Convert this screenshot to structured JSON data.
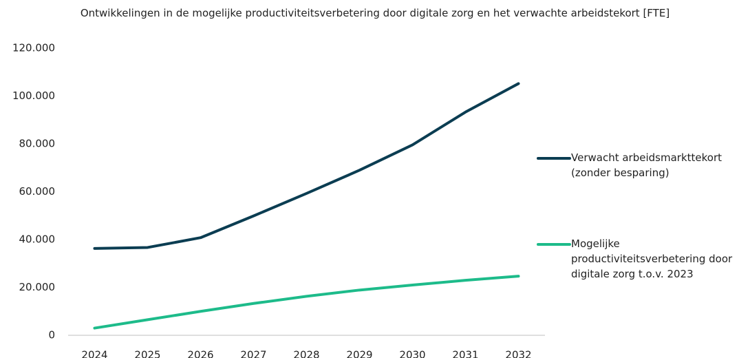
{
  "chart_data": {
    "type": "line",
    "title": "Ontwikkelingen in de mogelijke productiviteitsverbetering door digitale zorg en het verwachte arbeidstekort [FTE]",
    "categories": [
      "2024",
      "2025",
      "2026",
      "2027",
      "2028",
      "2029",
      "2030",
      "2031",
      "2032"
    ],
    "series": [
      {
        "name": "Verwacht arbeidsmarkttekort (zonder besparing)",
        "color": "#0b3d52",
        "values": [
          36300,
          36700,
          40800,
          49900,
          59300,
          69000,
          79600,
          93300,
          105200
        ]
      },
      {
        "name": "Mogelijke productiviteitsverbetering door digitale zorg t.o.v. 2023",
        "color": "#1dbb8a",
        "values": [
          3000,
          6500,
          10000,
          13300,
          16300,
          18900,
          21000,
          23000,
          24700
        ]
      }
    ],
    "ylim": [
      0,
      120000
    ],
    "yticks": [
      0,
      {
        "value": 20000,
        "label": "20.000"
      },
      {
        "value": 40000,
        "label": "40.000"
      },
      {
        "value": 60000,
        "label": "60.000"
      },
      {
        "value": 80000,
        "label": "80.000"
      },
      {
        "value": 100000,
        "label": "100.000"
      },
      {
        "value": 120000,
        "label": "120.000"
      }
    ],
    "grid": false,
    "legend": "right"
  }
}
